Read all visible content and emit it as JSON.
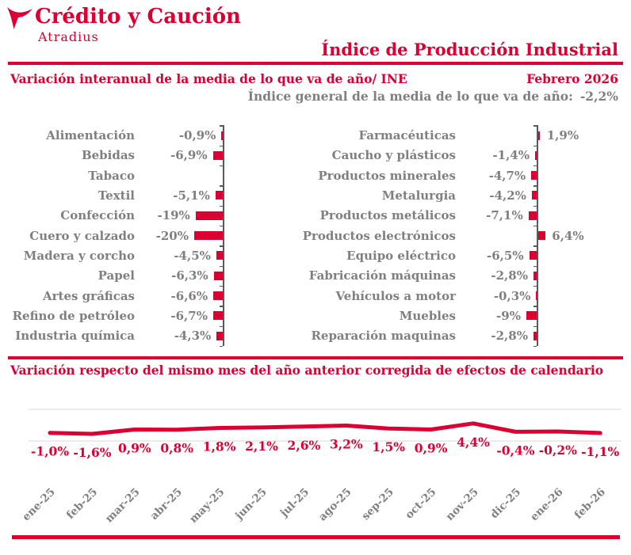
{
  "header": {
    "brand": "Crédito y Caución",
    "brand_sub": "Atradius",
    "title": "Índice de Producción Industrial"
  },
  "section1": {
    "subtitle_left": "Variación interanual de la media de lo que va de año/ INE",
    "period": "Febrero 2026",
    "general_index_label": "Índice general de la media de lo que va de año:",
    "general_index_value": "-2,2%"
  },
  "section2": {
    "title": "Variación respecto del mismo mes del año anterior corregida de efectos de calendario"
  },
  "colors": {
    "brand_red": "#dc0032",
    "text_gray": "#7f7f7f",
    "axis_gray": "#595959",
    "gridline_gray": "#d9d9d9",
    "month_label_gray": "#808080"
  },
  "chart_data": [
    {
      "type": "bar",
      "orientation": "horizontal",
      "panel": "left",
      "categories": [
        "Alimentación",
        "Bebidas",
        "Tabaco",
        "Textil",
        "Confección",
        "Cuero y calzado",
        "Madera y corcho",
        "Papel",
        "Artes gráficas",
        "Refino de petróleo",
        "Industria química"
      ],
      "values": [
        -0.9,
        -6.9,
        null,
        -5.1,
        -19,
        -20,
        -4.5,
        -6.3,
        -6.6,
        -6.7,
        -4.3
      ],
      "labels": [
        "-0,9%",
        "-6,9%",
        "",
        "-5,1%",
        "-19%",
        "-20%",
        "-4,5%",
        "-6,3%",
        "-6,6%",
        "-6,7%",
        "-4,3%"
      ]
    },
    {
      "type": "bar",
      "orientation": "horizontal",
      "panel": "right",
      "categories": [
        "Farmacéuticas",
        "Caucho y plásticos",
        "Productos minerales",
        "Metalurgia",
        "Productos metálicos",
        "Productos electrónicos",
        "Equipo eléctrico",
        "Fabricación máquinas",
        "Vehículos a motor",
        "Muebles",
        "Reparación maquinas"
      ],
      "values": [
        1.9,
        -1.4,
        -4.7,
        -4.2,
        -7.1,
        6.4,
        -6.5,
        -2.8,
        -0.3,
        -9,
        -2.8
      ],
      "labels": [
        "1,9%",
        "-1,4%",
        "-4,7%",
        "-4,2%",
        "-7,1%",
        "6,4%",
        "-6,5%",
        "-2,8%",
        "-0,3%",
        "-9%",
        "-2,8%"
      ]
    },
    {
      "type": "line",
      "x": [
        "ene-25",
        "feb-25",
        "mar-25",
        "abr-25",
        "may-25",
        "jun-25",
        "jul-25",
        "ago-25",
        "sep-25",
        "oct-25",
        "nov-25",
        "dic-25",
        "ene-26",
        "feb-26"
      ],
      "values": [
        -1.0,
        -1.6,
        0.9,
        0.8,
        1.8,
        2.1,
        2.6,
        3.2,
        1.5,
        0.9,
        4.4,
        -0.4,
        -0.2,
        -1.1
      ],
      "labels": [
        "-1,0%",
        "-1,6%",
        "0,9%",
        "0,8%",
        "1,8%",
        "2,1%",
        "2,6%",
        "3,2%",
        "1,5%",
        "0,9%",
        "4,4%",
        "-0,4%",
        "-0,2%",
        "-1,1%"
      ],
      "grid": "horizontal-faint",
      "legend": "none"
    }
  ]
}
